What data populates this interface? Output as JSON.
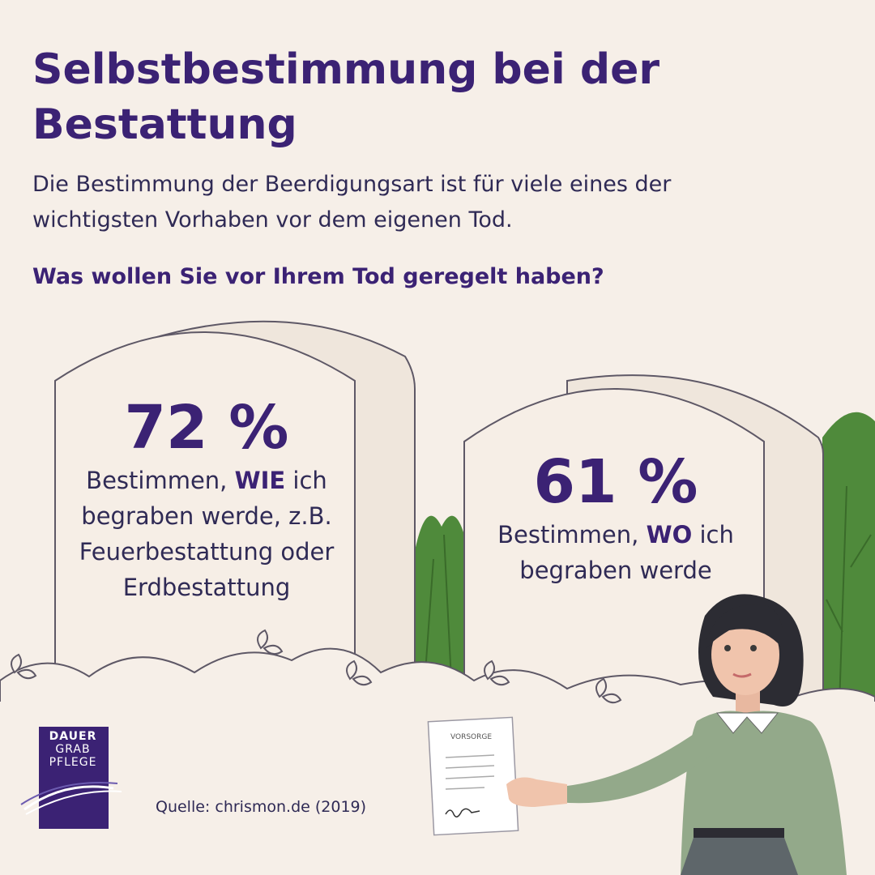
{
  "title": "Selbstbestimmung bei der Bestattung",
  "subtitle": "Die Bestimmung der Beerdigungsart ist für viele eines der wichtigsten Vorhaben vor dem eigenen Tod.",
  "question": "Was wollen Sie vor Ihrem Tod geregelt haben?",
  "stats": [
    {
      "value": "72 %",
      "desc_before": "Bestimmen, ",
      "desc_emphasis": "WIE",
      "desc_after": " ich begraben werde, z.B. Feuerbestattung oder Erdbestattung"
    },
    {
      "value": "61 %",
      "desc_before": "Bestimmen, ",
      "desc_emphasis": "WO",
      "desc_after": " ich begraben werde"
    }
  ],
  "document_label": "VORSORGE",
  "logo": {
    "line1": "DAUER",
    "line2": "GRAB",
    "line3": "PFLEGE"
  },
  "source": "Quelle: chrismon.de (2019)",
  "colors": {
    "background": "#f6efe8",
    "purple": "#3b2274",
    "stone_fill": "#f6eee6",
    "stone_outline": "#5e5866",
    "bush_green": "#4f8a3b",
    "sweater_green": "#93a98a"
  },
  "icons": [
    "gravestone-icon",
    "leaf-icon",
    "document-icon",
    "woman-illustration",
    "logo-wave-icon"
  ]
}
